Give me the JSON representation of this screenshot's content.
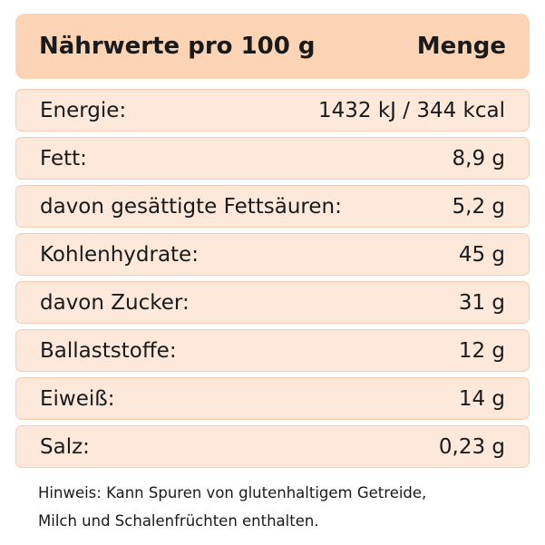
{
  "header": {
    "title": "Nährwerte pro 100 g",
    "quantity": "Menge"
  },
  "table": {
    "rows": [
      [
        "Energie:",
        "1432 kJ / 344 kcal"
      ],
      [
        "Fett:",
        "8,9 g"
      ],
      [
        "davon gesättigte Fettsäuren:",
        "5,2 g"
      ],
      [
        "Kohlenhydrate:",
        "45 g"
      ],
      [
        "davon Zucker:",
        "31 g"
      ],
      [
        "Ballaststoffe:",
        "12 g"
      ],
      [
        "Eiweiß:",
        "14 g"
      ],
      [
        "Salz:",
        "0,23 g"
      ]
    ]
  },
  "note": {
    "lines": [
      "Hinweis: Kann Spuren von glutenhaltigem Getreide,",
      "Milch und Schalenfrüchten enthalten."
    ]
  }
}
